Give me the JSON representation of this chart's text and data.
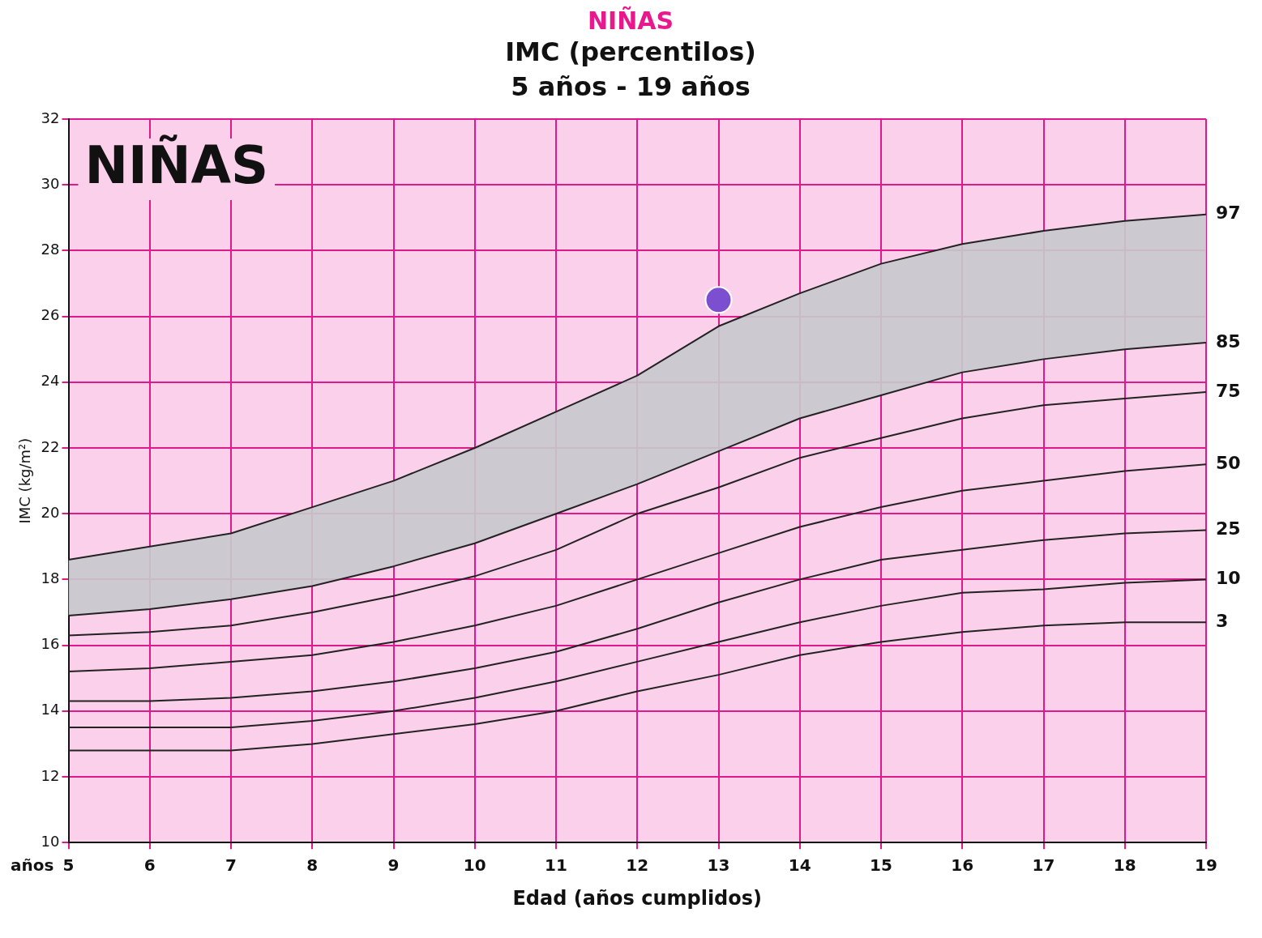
{
  "chart_data": {
    "type": "line",
    "title": "NIÑAS",
    "subtitle": "IMC (percentilos)\n5 años - 19 años",
    "xlabel": "Edad (años cumplidos)",
    "ylabel": "IMC (kg/m²)",
    "annotations": [
      "NIÑAS",
      "años"
    ],
    "x": [
      5,
      6,
      7,
      8,
      9,
      10,
      11,
      12,
      13,
      14,
      15,
      16,
      17,
      18,
      19
    ],
    "xlim": [
      5,
      19
    ],
    "xticks": [
      5,
      6,
      7,
      8,
      9,
      10,
      11,
      12,
      13,
      14,
      15,
      16,
      17,
      18,
      19
    ],
    "ylim": [
      10,
      32
    ],
    "yticks": [
      10,
      12,
      14,
      16,
      18,
      20,
      22,
      24,
      26,
      28,
      30,
      32
    ],
    "grid": true,
    "legend": false,
    "marker": "none",
    "line_style": "solid",
    "series": [
      {
        "name": "97",
        "color": "#222222",
        "values": [
          18.6,
          19.0,
          19.4,
          20.2,
          21.0,
          22.0,
          23.1,
          24.2,
          25.7,
          26.7,
          27.6,
          28.2,
          28.6,
          28.9,
          29.1
        ],
        "lower": [
          16.9,
          17.1,
          17.4,
          17.8,
          18.4,
          19.1,
          20.0,
          20.9,
          21.9,
          22.9,
          23.6,
          24.3,
          24.7,
          25.0,
          25.2
        ],
        "upper": [
          18.6,
          19.0,
          19.4,
          20.2,
          21.0,
          22.0,
          23.1,
          24.2,
          25.7,
          26.7,
          27.6,
          28.2,
          28.6,
          28.9,
          29.1
        ]
      },
      {
        "name": "85",
        "color": "#222222",
        "values": [
          16.9,
          17.1,
          17.4,
          17.8,
          18.4,
          19.1,
          20.0,
          20.9,
          21.9,
          22.9,
          23.6,
          24.3,
          24.7,
          25.0,
          25.2
        ]
      },
      {
        "name": "75",
        "color": "#222222",
        "values": [
          16.3,
          16.4,
          16.6,
          17.0,
          17.5,
          18.1,
          18.9,
          20.0,
          20.8,
          21.7,
          22.3,
          22.9,
          23.3,
          23.5,
          23.7
        ]
      },
      {
        "name": "50",
        "color": "#222222",
        "values": [
          15.2,
          15.3,
          15.5,
          15.7,
          16.1,
          16.6,
          17.2,
          18.0,
          18.8,
          19.6,
          20.2,
          20.7,
          21.0,
          21.3,
          21.5
        ]
      },
      {
        "name": "25",
        "color": "#222222",
        "values": [
          14.3,
          14.3,
          14.4,
          14.6,
          14.9,
          15.3,
          15.8,
          16.5,
          17.3,
          18.0,
          18.6,
          18.9,
          19.2,
          19.4,
          19.5
        ]
      },
      {
        "name": "10",
        "color": "#222222",
        "values": [
          13.5,
          13.5,
          13.5,
          13.7,
          14.0,
          14.4,
          14.9,
          15.5,
          16.1,
          16.7,
          17.2,
          17.6,
          17.7,
          17.9,
          18.0
        ]
      },
      {
        "name": "3",
        "color": "#222222",
        "values": [
          12.8,
          12.8,
          12.8,
          13.0,
          13.3,
          13.6,
          14.0,
          14.6,
          15.1,
          15.7,
          16.1,
          16.4,
          16.6,
          16.7,
          16.7
        ]
      },
      {
        "type": "scatter",
        "marker": "circle",
        "color": "#7b4fd0",
        "x": [
          13
        ],
        "values": [
          26.5
        ]
      }
    ]
  }
}
